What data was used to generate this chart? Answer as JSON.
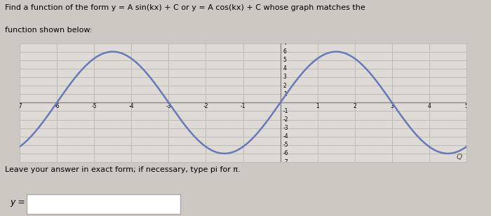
{
  "title_line1": "Find a function of the form y = A sin(kx) + C or y = A cos(kx) + C whose graph matches the",
  "title_line2": "function shown below:",
  "leave_text": "Leave your answer in exact form; if necessary, type pi for π.",
  "y_label": "y =",
  "amplitude": 6,
  "k": 1.0471975511965976,
  "C": 0,
  "x_min": -7,
  "x_max": 5,
  "y_min": -7,
  "y_max": 7,
  "curve_color": "#6b78b8",
  "grid_major_color": "#bbbbbb",
  "grid_minor_color": "#dddddd",
  "axis_line_color": "#888888",
  "bg_color": "#ccc9c2",
  "plot_bg_color": "#dedad4",
  "tick_label_fontsize": 5.5,
  "figsize": [
    7.0,
    3.08
  ],
  "dpi": 100
}
